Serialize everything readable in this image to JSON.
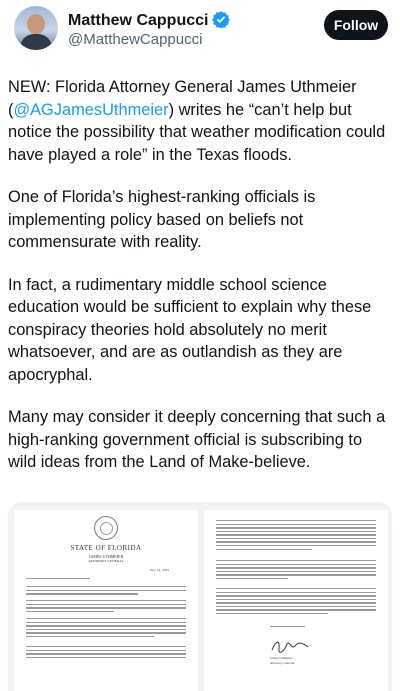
{
  "author": {
    "name": "Matthew Cappucci",
    "handle": "@MatthewCappucci",
    "verified_icon": "verified-badge-icon",
    "accent": "#1d9bf0"
  },
  "follow_label": "Follow",
  "tweet": {
    "p1_before": "NEW: Florida Attorney General James Uthmeier (",
    "p1_mention": "@AGJamesUthmeier",
    "p1_after": ") writes he “can’t help but notice the possibility that weather modification could have played a role” in the Texas floods.",
    "p2": "One of Florida’s highest-ranking officials is implementing policy based on beliefs not commensurate with reality.",
    "p3": "In fact, a rudimentary middle school science education would be sufficient to explain why these conspiracy theories hold absolutely no merit whatsoever, and are as outlandish as they are apocryphal.",
    "p4": "Many may consider it deeply concerning that such a high-ranking government official is subscribing to wild ideas from the Land of Make-believe."
  },
  "letter": {
    "state": "STATE OF FLORIDA",
    "official": "JAMES UTHMEIER",
    "office": "ATTORNEY GENERAL",
    "date": "July 14, 2025",
    "signer": "James Uthmeier",
    "signer_title": "Attorney General"
  }
}
